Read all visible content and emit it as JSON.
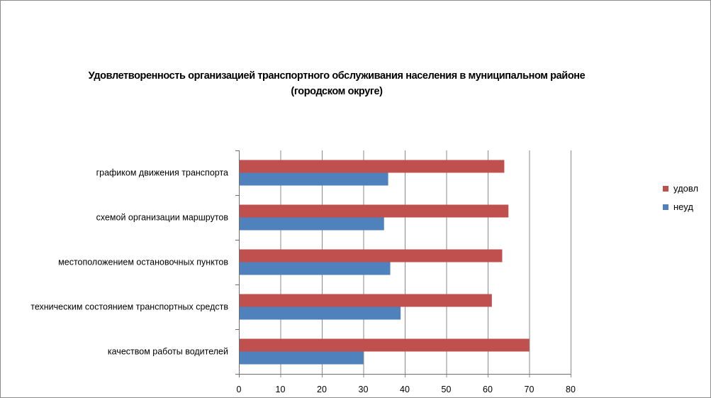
{
  "chart_data": {
    "type": "bar",
    "orientation": "horizontal",
    "title": "Удовлетворенность организацией транспортного обслуживания населения в муниципальном районе",
    "subtitle": "(городском округе)",
    "categories": [
      "графиком движения  транспорта",
      "схемой организации маршрутов",
      "местоположением  остановочных пунктов",
      "техническим  состоянием  транспортных средств",
      "качеством работы водителей"
    ],
    "series": [
      {
        "name": "удовл",
        "color": "#c0504d",
        "values": [
          64,
          65,
          63.5,
          61,
          70
        ]
      },
      {
        "name": "неуд",
        "color": "#4f81bd",
        "values": [
          36,
          35,
          36.5,
          39,
          30
        ]
      }
    ],
    "xlim": [
      0,
      80
    ],
    "x_ticks": [
      "0",
      "10",
      "20",
      "30",
      "40",
      "50",
      "60",
      "70",
      "80"
    ],
    "grid": "vertical",
    "legend_position": "right"
  }
}
